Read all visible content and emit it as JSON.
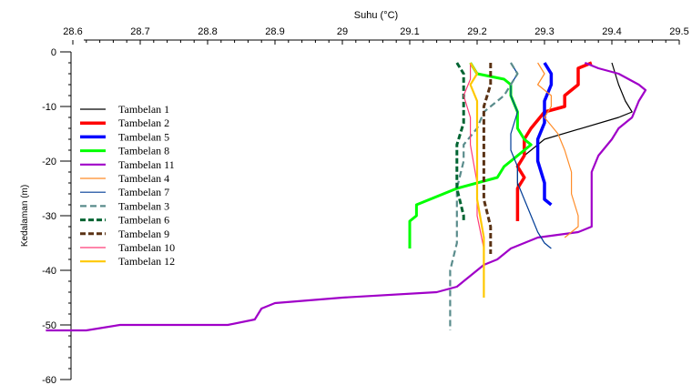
{
  "chart_data": {
    "type": "line",
    "title": "",
    "xlabel": "Suhu (°C)",
    "ylabel": "Kedalaman (m)",
    "x_axis_position": "top",
    "xlim": [
      28.6,
      29.5
    ],
    "ylim": [
      -60,
      0
    ],
    "x_ticks": [
      "28.6",
      "28.7",
      "28.8",
      "28.9",
      "29",
      "29.1",
      "29.2",
      "29.3",
      "29.4",
      "29.5"
    ],
    "y_ticks": [
      "0",
      "-10",
      "-20",
      "-30",
      "-40",
      "-50",
      "-60"
    ],
    "grid": false,
    "legend_position": "left",
    "series": [
      {
        "name": "Tambelan 1",
        "color": "#000000",
        "width": 1.2,
        "dash": "",
        "points": [
          [
            29.4,
            -2
          ],
          [
            29.41,
            -6
          ],
          [
            29.42,
            -9
          ],
          [
            29.43,
            -11
          ],
          [
            29.41,
            -12
          ],
          [
            29.3,
            -16
          ],
          [
            29.27,
            -19
          ],
          [
            29.26,
            -21
          ],
          [
            29.26,
            -25
          ],
          [
            29.26,
            -30
          ],
          [
            29.26,
            -31
          ]
        ]
      },
      {
        "name": "Tambelan 2",
        "color": "#ff0000",
        "width": 3.5,
        "dash": "",
        "points": [
          [
            29.37,
            -2
          ],
          [
            29.35,
            -3
          ],
          [
            29.35,
            -6
          ],
          [
            29.34,
            -7
          ],
          [
            29.33,
            -8
          ],
          [
            29.33,
            -10
          ],
          [
            29.3,
            -11
          ],
          [
            29.28,
            -14
          ],
          [
            29.27,
            -16
          ],
          [
            29.27,
            -19
          ],
          [
            29.26,
            -21
          ],
          [
            29.27,
            -23
          ],
          [
            29.26,
            -25
          ],
          [
            29.26,
            -31
          ]
        ]
      },
      {
        "name": "Tambelan 5",
        "color": "#0000ff",
        "width": 3.5,
        "dash": "",
        "points": [
          [
            29.3,
            -2
          ],
          [
            29.31,
            -4
          ],
          [
            29.31,
            -6
          ],
          [
            29.3,
            -9
          ],
          [
            29.3,
            -13
          ],
          [
            29.29,
            -16
          ],
          [
            29.29,
            -20
          ],
          [
            29.3,
            -24
          ],
          [
            29.3,
            -27
          ],
          [
            29.31,
            -28
          ]
        ]
      },
      {
        "name": "Tambelan 8",
        "color": "#00ff00",
        "width": 3.0,
        "dash": "",
        "points": [
          [
            29.19,
            -2
          ],
          [
            29.2,
            -4
          ],
          [
            29.24,
            -5
          ],
          [
            29.25,
            -6
          ],
          [
            29.25,
            -8
          ],
          [
            29.26,
            -11
          ],
          [
            29.26,
            -14
          ],
          [
            29.27,
            -16
          ],
          [
            29.28,
            -17
          ],
          [
            29.26,
            -19
          ],
          [
            29.24,
            -21
          ],
          [
            29.23,
            -23
          ],
          [
            29.17,
            -25
          ],
          [
            29.15,
            -26
          ],
          [
            29.13,
            -27
          ],
          [
            29.11,
            -28
          ],
          [
            29.11,
            -30
          ],
          [
            29.1,
            -31
          ],
          [
            29.1,
            -36
          ]
        ]
      },
      {
        "name": "Tambelan 11",
        "color": "#a000c8",
        "width": 2.2,
        "dash": "",
        "points": [
          [
            29.36,
            -2
          ],
          [
            29.38,
            -3
          ],
          [
            29.41,
            -4
          ],
          [
            29.44,
            -6
          ],
          [
            29.45,
            -7
          ],
          [
            29.44,
            -9
          ],
          [
            29.43,
            -12
          ],
          [
            29.41,
            -14
          ],
          [
            29.4,
            -16
          ],
          [
            29.38,
            -19
          ],
          [
            29.37,
            -22
          ],
          [
            29.37,
            -32
          ],
          [
            29.35,
            -33
          ],
          [
            29.29,
            -34
          ],
          [
            29.25,
            -36
          ],
          [
            29.24,
            -37
          ],
          [
            29.23,
            -38
          ],
          [
            29.21,
            -39
          ],
          [
            29.19,
            -41
          ],
          [
            29.17,
            -43
          ],
          [
            29.14,
            -44
          ],
          [
            29.0,
            -45
          ],
          [
            28.9,
            -46
          ],
          [
            28.88,
            -47
          ],
          [
            28.87,
            -49
          ],
          [
            28.83,
            -50
          ],
          [
            28.67,
            -50
          ],
          [
            28.62,
            -51
          ],
          [
            28.56,
            -51
          ]
        ]
      },
      {
        "name": "Tambelan 4",
        "color": "#ff8c28",
        "width": 1.2,
        "dash": "",
        "points": [
          [
            29.29,
            -2
          ],
          [
            29.3,
            -4
          ],
          [
            29.29,
            -6
          ],
          [
            29.31,
            -8
          ],
          [
            29.31,
            -10
          ],
          [
            29.3,
            -12
          ],
          [
            29.32,
            -15
          ],
          [
            29.33,
            -18
          ],
          [
            29.34,
            -22
          ],
          [
            29.34,
            -26
          ],
          [
            29.35,
            -30
          ],
          [
            29.35,
            -32
          ],
          [
            29.34,
            -33
          ],
          [
            29.33,
            -34
          ]
        ]
      },
      {
        "name": "Tambelan 7",
        "color": "#003c96",
        "width": 1.2,
        "dash": "",
        "points": [
          [
            29.25,
            -2
          ],
          [
            29.26,
            -4
          ],
          [
            29.25,
            -6
          ],
          [
            29.25,
            -8
          ],
          [
            29.26,
            -11
          ],
          [
            29.25,
            -15
          ],
          [
            29.25,
            -18
          ],
          [
            29.26,
            -21
          ],
          [
            29.26,
            -24
          ],
          [
            29.27,
            -27
          ],
          [
            29.28,
            -30
          ],
          [
            29.29,
            -33
          ],
          [
            29.3,
            -35
          ],
          [
            29.31,
            -36
          ]
        ]
      },
      {
        "name": "Tambelan 3",
        "color": "#5a8c8c",
        "width": 2.2,
        "dash": "7 4",
        "points": [
          [
            29.25,
            -2
          ],
          [
            29.26,
            -4
          ],
          [
            29.24,
            -8
          ],
          [
            29.21,
            -11
          ],
          [
            29.2,
            -14
          ],
          [
            29.18,
            -17
          ],
          [
            29.18,
            -20
          ],
          [
            29.17,
            -25
          ],
          [
            29.17,
            -30
          ],
          [
            29.17,
            -35
          ],
          [
            29.16,
            -40
          ],
          [
            29.16,
            -45
          ],
          [
            29.16,
            -49
          ],
          [
            29.16,
            -51
          ]
        ]
      },
      {
        "name": "Tambelan 6",
        "color": "#006432",
        "width": 3.0,
        "dash": "6 3",
        "points": [
          [
            29.17,
            -2
          ],
          [
            29.18,
            -4
          ],
          [
            29.18,
            -9
          ],
          [
            29.18,
            -13
          ],
          [
            29.17,
            -17
          ],
          [
            29.17,
            -21
          ],
          [
            29.17,
            -25
          ],
          [
            29.18,
            -30
          ],
          [
            29.18,
            -31
          ]
        ]
      },
      {
        "name": "Tambelan 9",
        "color": "#5a3214",
        "width": 3.0,
        "dash": "6 3",
        "points": [
          [
            29.22,
            -2
          ],
          [
            29.22,
            -6
          ],
          [
            29.21,
            -10
          ],
          [
            29.21,
            -16
          ],
          [
            29.21,
            -22
          ],
          [
            29.21,
            -27
          ],
          [
            29.22,
            -32
          ],
          [
            29.22,
            -37
          ]
        ]
      },
      {
        "name": "Tambelan 10",
        "color": "#ff3c78",
        "width": 1.2,
        "dash": "",
        "points": [
          [
            29.19,
            -2
          ],
          [
            29.19,
            -5
          ],
          [
            29.18,
            -8
          ],
          [
            29.19,
            -12
          ],
          [
            29.19,
            -17
          ],
          [
            29.2,
            -24
          ],
          [
            29.2,
            -30
          ],
          [
            29.21,
            -36
          ],
          [
            29.21,
            -41
          ]
        ]
      },
      {
        "name": "Tambelan 12",
        "color": "#ffc800",
        "width": 2.2,
        "dash": "",
        "points": [
          [
            29.19,
            -2
          ],
          [
            29.2,
            -4
          ],
          [
            29.19,
            -6
          ],
          [
            29.2,
            -9
          ],
          [
            29.2,
            -13
          ],
          [
            29.2,
            -20
          ],
          [
            29.2,
            -27
          ],
          [
            29.21,
            -34
          ],
          [
            29.21,
            -40
          ],
          [
            29.21,
            -45
          ]
        ]
      }
    ]
  }
}
